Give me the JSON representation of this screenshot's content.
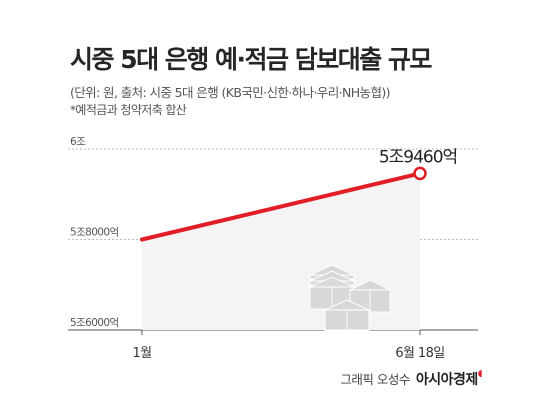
{
  "header": {
    "title": "시중 5대 은행 예·적금 담보대출 규모",
    "subtitle": "(단위: 원, 출처: 시중 5대 은행 (KB국민·신한·하나·우리·NH농협))",
    "note": "*예적금과 청약저축 합산"
  },
  "credit": {
    "prefix": "그래픽 오성수",
    "brand": "아시아경제"
  },
  "colors": {
    "line": "#e11e25",
    "area": "#f4f4f4",
    "grid": "#bdbdbd"
  },
  "chart_data": {
    "type": "area",
    "categories": [
      "1월",
      "6월 18일"
    ],
    "values": [
      58000,
      59460
    ],
    "y_unit": "억 원",
    "ylim": [
      56000,
      60000
    ],
    "yticks": [
      {
        "value": 60000,
        "label": "6조"
      },
      {
        "value": 58000,
        "label": "5조8000억"
      },
      {
        "value": 56000,
        "label": "5조6000억"
      }
    ],
    "data_labels": [
      {
        "index": 1,
        "text": "5조9460억"
      }
    ],
    "grid": true,
    "legend": "none",
    "xlabel": "",
    "ylabel": "",
    "title": ""
  }
}
